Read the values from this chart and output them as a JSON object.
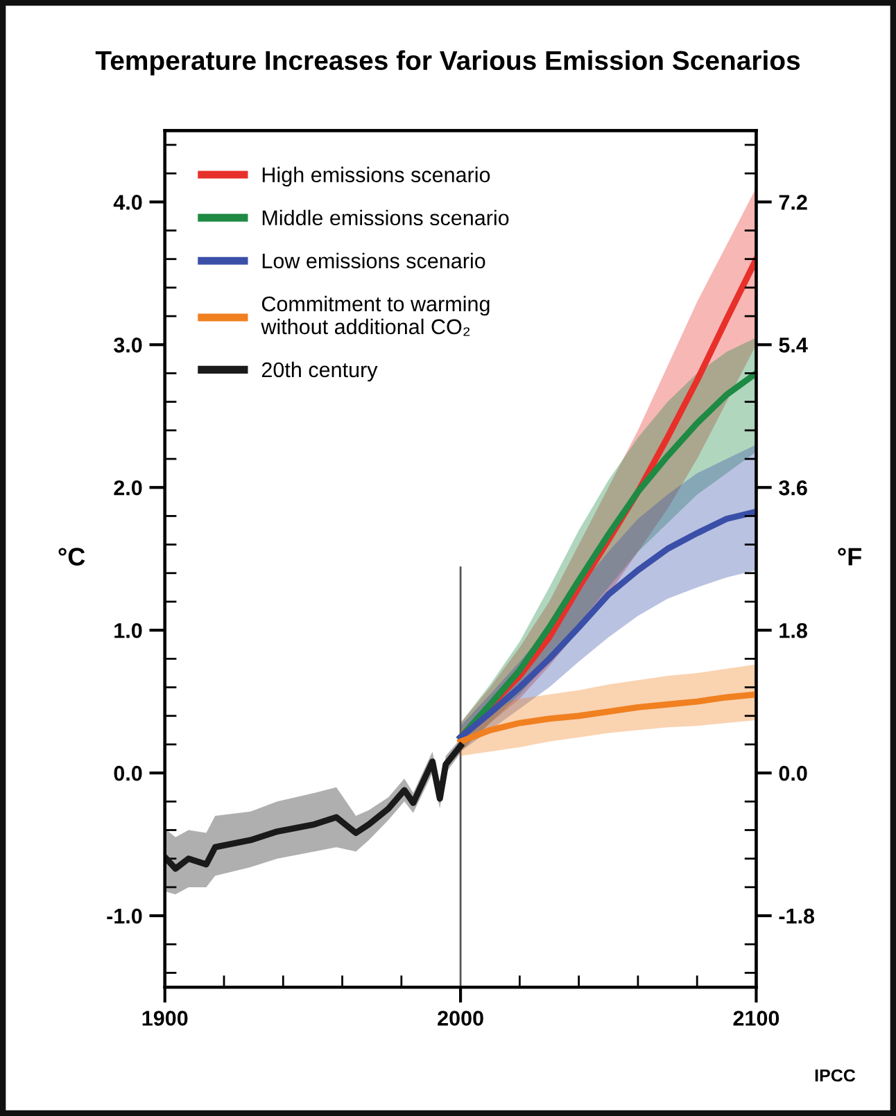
{
  "chart_data": {
    "type": "line",
    "title": "Temperature Increases for Various Emission Scenarios",
    "ylabel": "°C",
    "y2label": "°F",
    "annotations": [
      "IPCC"
    ],
    "xlim": [
      1900,
      2100
    ],
    "xticks": [
      1900,
      2000,
      2100
    ],
    "ylim": [
      -1.5,
      4.5
    ],
    "yticks": [
      {
        "value": -1,
        "label": "-1.0"
      },
      {
        "value": 0,
        "label": "0.0"
      },
      {
        "value": 1,
        "label": "1.0"
      },
      {
        "value": 2,
        "label": "2.0"
      },
      {
        "value": 3,
        "label": "3.0"
      },
      {
        "value": 4,
        "label": "4.0"
      }
    ],
    "y2lim": [
      -2.7,
      8.1
    ],
    "y2ticks": [
      {
        "value": -1.8,
        "label": "-1.8"
      },
      {
        "value": 0,
        "label": "0.0"
      },
      1.8,
      3.6,
      5.4,
      7.2
    ],
    "ref_lines": [
      {
        "axis": "x",
        "value": 2000,
        "color": "#555555"
      }
    ],
    "legend": "top left",
    "grid": false,
    "series": [
      {
        "name": "High emissions scenario",
        "color": "#e8302a",
        "x": [
          2000,
          2010,
          2020,
          2030,
          2040,
          2050,
          2060,
          2070,
          2080,
          2090,
          2100
        ],
        "values": [
          0.25,
          0.47,
          0.68,
          0.95,
          1.3,
          1.63,
          1.97,
          2.35,
          2.75,
          3.18,
          3.6
        ],
        "lower": [
          0.15,
          0.35,
          0.52,
          0.75,
          1.0,
          1.25,
          1.55,
          1.85,
          2.2,
          2.6,
          3.0
        ],
        "upper": [
          0.35,
          0.6,
          0.88,
          1.2,
          1.6,
          2.0,
          2.4,
          2.85,
          3.3,
          3.7,
          4.1
        ]
      },
      {
        "name": "Middle emissions scenario",
        "color": "#1e8a44",
        "x": [
          2000,
          2010,
          2020,
          2030,
          2040,
          2050,
          2060,
          2070,
          2080,
          2090,
          2100
        ],
        "values": [
          0.25,
          0.48,
          0.72,
          1.02,
          1.35,
          1.67,
          1.97,
          2.22,
          2.45,
          2.65,
          2.8
        ],
        "lower": [
          0.15,
          0.35,
          0.55,
          0.78,
          1.05,
          1.3,
          1.55,
          1.75,
          1.95,
          2.1,
          2.25
        ],
        "upper": [
          0.35,
          0.62,
          0.92,
          1.3,
          1.7,
          2.05,
          2.35,
          2.6,
          2.8,
          2.95,
          3.05
        ]
      },
      {
        "name": "Low emissions scenario",
        "color": "#3a4fa8",
        "x": [
          2000,
          2010,
          2020,
          2030,
          2040,
          2050,
          2060,
          2070,
          2080,
          2090,
          2100
        ],
        "values": [
          0.25,
          0.42,
          0.6,
          0.8,
          1.02,
          1.25,
          1.42,
          1.57,
          1.68,
          1.78,
          1.83
        ],
        "lower": [
          0.15,
          0.3,
          0.45,
          0.6,
          0.78,
          0.95,
          1.1,
          1.22,
          1.3,
          1.37,
          1.42
        ],
        "upper": [
          0.33,
          0.55,
          0.78,
          1.02,
          1.3,
          1.55,
          1.78,
          1.95,
          2.1,
          2.2,
          2.3
        ]
      },
      {
        "name": "Commitment to warming\nwithout additional CO₂",
        "color": "#f08020",
        "x": [
          2000,
          2010,
          2020,
          2030,
          2040,
          2050,
          2060,
          2070,
          2080,
          2090,
          2100
        ],
        "values": [
          0.22,
          0.3,
          0.35,
          0.38,
          0.4,
          0.43,
          0.46,
          0.48,
          0.5,
          0.53,
          0.55
        ],
        "lower": [
          0.12,
          0.15,
          0.18,
          0.22,
          0.25,
          0.28,
          0.3,
          0.32,
          0.33,
          0.35,
          0.37
        ],
        "upper": [
          0.3,
          0.45,
          0.52,
          0.55,
          0.58,
          0.62,
          0.65,
          0.68,
          0.7,
          0.73,
          0.76
        ]
      },
      {
        "name": "20th century",
        "color": "#1a1a1a",
        "x": [
          1900,
          1903.6,
          1908,
          1914,
          1917,
          1929,
          1938,
          1950.5,
          1958,
          1964.6,
          1969,
          1975.6,
          1981,
          1984,
          1990.5,
          1993,
          1995,
          2000
        ],
        "values": [
          -0.59,
          -0.67,
          -0.6,
          -0.64,
          -0.52,
          -0.47,
          -0.41,
          -0.36,
          -0.31,
          -0.42,
          -0.36,
          -0.25,
          -0.12,
          -0.21,
          0.08,
          -0.18,
          0.06,
          0.19
        ],
        "lower": [
          -0.83,
          -0.85,
          -0.8,
          -0.8,
          -0.72,
          -0.66,
          -0.6,
          -0.55,
          -0.52,
          -0.55,
          -0.47,
          -0.33,
          -0.2,
          -0.28,
          0.0,
          -0.25,
          0.0,
          0.14
        ],
        "upper": [
          -0.39,
          -0.45,
          -0.4,
          -0.42,
          -0.3,
          -0.27,
          -0.2,
          -0.14,
          -0.1,
          -0.3,
          -0.26,
          -0.17,
          -0.04,
          -0.14,
          0.15,
          -0.11,
          0.12,
          0.24
        ]
      }
    ]
  }
}
